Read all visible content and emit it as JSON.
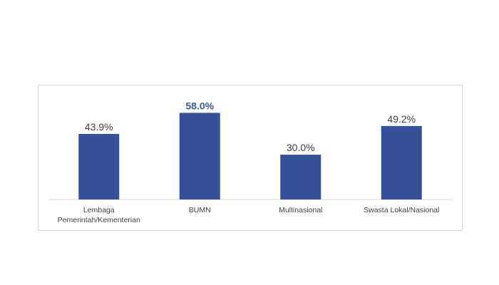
{
  "chart_data": {
    "type": "bar",
    "categories": [
      [
        "Lembaga",
        "Pemerintah/Kementerian"
      ],
      [
        "BUMN"
      ],
      [
        "Multinasional"
      ],
      [
        "Swasta Lokal/Nasional"
      ]
    ],
    "values": [
      43.9,
      58.0,
      30.0,
      49.2
    ],
    "value_labels": [
      "43.9%",
      "58.0%",
      "30.0%",
      "49.2%"
    ],
    "highlight_index": 1,
    "ylim": [
      0,
      62
    ],
    "grid": false,
    "legend": "none",
    "title": "",
    "xlabel": "",
    "ylabel": ""
  },
  "colors": {
    "bar": "#36519a",
    "highlight_label": "#3a5aa6",
    "axis": "#d9d9d9",
    "text": "#404040"
  }
}
